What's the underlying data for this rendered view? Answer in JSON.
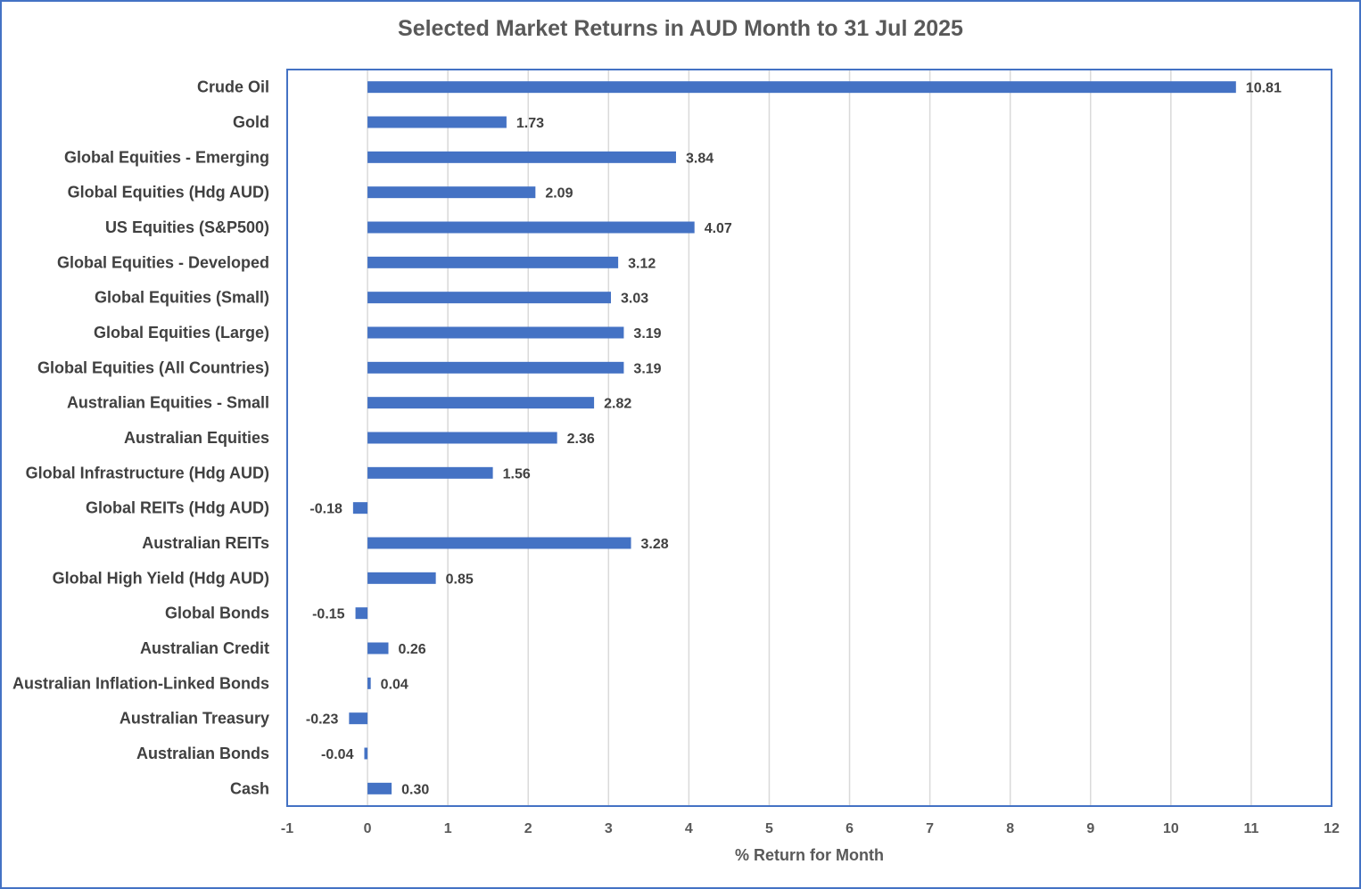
{
  "chart_data": {
    "type": "bar",
    "orientation": "horizontal",
    "title": "Selected Market Returns in AUD Month to 31 Jul 2025",
    "xlabel": "% Return for Month",
    "ylabel": "",
    "xlim": [
      -1,
      12
    ],
    "xticks": [
      "-1",
      "0",
      "1",
      "2",
      "3",
      "4",
      "5",
      "6",
      "7",
      "8",
      "9",
      "10",
      "11",
      "12"
    ],
    "grid": true,
    "color": "#4472C4",
    "categories": [
      "Crude Oil",
      "Gold",
      "Global Equities - Emerging",
      "Global Equities (Hdg AUD)",
      "US Equities (S&P500)",
      "Global Equities - Developed",
      "Global Equities (Small)",
      "Global Equities (Large)",
      "Global Equities (All Countries)",
      "Australian Equities - Small",
      "Australian Equities",
      "Global Infrastructure (Hdg AUD)",
      "Global REITs (Hdg AUD)",
      "Australian REITs",
      "Global High Yield (Hdg AUD)",
      "Global Bonds",
      "Australian Credit",
      "Australian Inflation-Linked Bonds",
      "Australian Treasury",
      "Australian Bonds",
      "Cash"
    ],
    "values": [
      10.81,
      1.73,
      3.84,
      2.09,
      4.07,
      3.12,
      3.03,
      3.19,
      3.19,
      2.82,
      2.36,
      1.56,
      -0.18,
      3.28,
      0.85,
      -0.15,
      0.26,
      0.04,
      -0.23,
      -0.04,
      0.3
    ],
    "value_labels": [
      "10.81",
      "1.73",
      "3.84",
      "2.09",
      "4.07",
      "3.12",
      "3.03",
      "3.19",
      "3.19",
      "2.82",
      "2.36",
      "1.56",
      "-0.18",
      "3.28",
      "0.85",
      "-0.15",
      "0.26",
      "0.04",
      "-0.23",
      "-0.04",
      "0.30"
    ]
  }
}
